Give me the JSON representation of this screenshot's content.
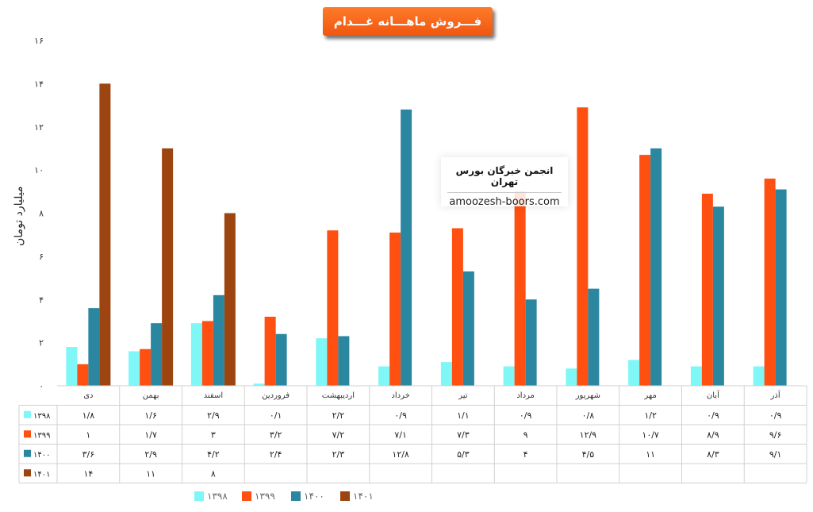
{
  "title": "فـــروش ماهـــانه غـــدام",
  "watermark": {
    "line1": "انجمن خبرگان بورس تهران",
    "line2": "amoozesh-boors.com"
  },
  "chart_data": {
    "type": "bar",
    "title": "فـــروش ماهـــانه غـــدام",
    "ylabel": "میلیارد تومان",
    "ylim": [
      0,
      16
    ],
    "yticks": [
      "۰",
      "۲",
      "۴",
      "۶",
      "۸",
      "۱۰",
      "۱۲",
      "۱۴",
      "۱۶"
    ],
    "categories": [
      "دی",
      "بهمن",
      "اسفند",
      "فروردین",
      "اردیبهشت",
      "خرداد",
      "تیر",
      "مرداد",
      "شهریور",
      "مهر",
      "آبان",
      "آذر"
    ],
    "legend_position": "bottom",
    "grid": false,
    "series": [
      {
        "name": "۱۳۹۸",
        "color": "#7ff7f7",
        "values": [
          1.8,
          1.6,
          2.9,
          0.1,
          2.2,
          0.9,
          1.1,
          0.9,
          0.8,
          1.2,
          0.9,
          0.9
        ],
        "labels": [
          "۱/۸",
          "۱/۶",
          "۲/۹",
          "۰/۱",
          "۲/۲",
          "۰/۹",
          "۱/۱",
          "۰/۹",
          "۰/۸",
          "۱/۲",
          "۰/۹",
          "۰/۹"
        ]
      },
      {
        "name": "۱۳۹۹",
        "color": "#ff4f11",
        "values": [
          1,
          1.7,
          3,
          3.2,
          7.2,
          7.1,
          7.3,
          9,
          12.9,
          10.7,
          8.9,
          9.6
        ],
        "labels": [
          "۱",
          "۱/۷",
          "۳",
          "۳/۲",
          "۷/۲",
          "۷/۱",
          "۷/۳",
          "۹",
          "۱۲/۹",
          "۱۰/۷",
          "۸/۹",
          "۹/۶"
        ]
      },
      {
        "name": "۱۴۰۰",
        "color": "#2b86a0",
        "values": [
          3.6,
          2.9,
          4.2,
          2.4,
          2.3,
          12.8,
          5.3,
          4,
          4.5,
          11,
          8.3,
          9.1
        ],
        "labels": [
          "۳/۶",
          "۲/۹",
          "۴/۲",
          "۲/۴",
          "۲/۳",
          "۱۲/۸",
          "۵/۳",
          "۴",
          "۴/۵",
          "۱۱",
          "۸/۳",
          "۹/۱"
        ]
      },
      {
        "name": "۱۴۰۱",
        "color": "#9c4511",
        "values": [
          14,
          11,
          8,
          null,
          null,
          null,
          null,
          null,
          null,
          null,
          null,
          null
        ],
        "labels": [
          "۱۴",
          "۱۱",
          "۸",
          "",
          "",
          "",
          "",
          "",
          "",
          "",
          "",
          ""
        ]
      }
    ]
  }
}
